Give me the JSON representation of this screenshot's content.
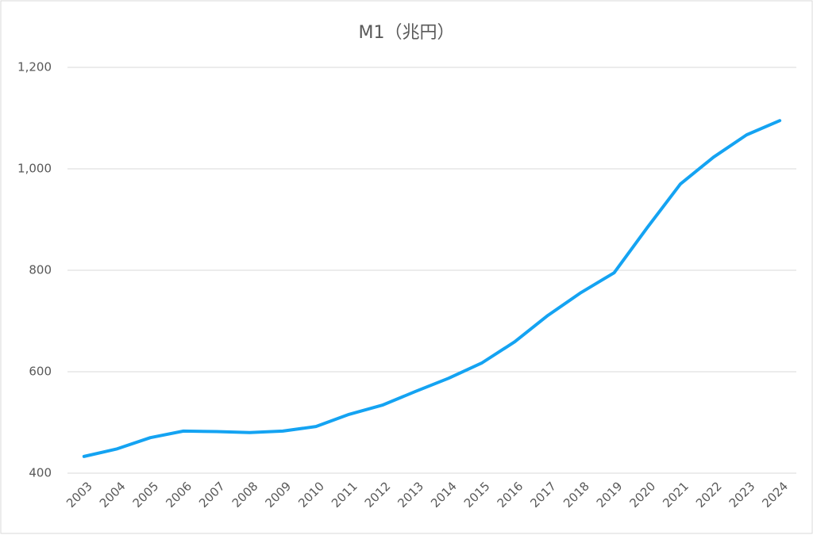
{
  "chart_data": {
    "type": "line",
    "title": "M1（兆円）",
    "categories": [
      "2003",
      "2004",
      "2005",
      "2006",
      "2007",
      "2008",
      "2009",
      "2010",
      "2011",
      "2012",
      "2013",
      "2014",
      "2015",
      "2016",
      "2017",
      "2018",
      "2019",
      "2020",
      "2021",
      "2022",
      "2023",
      "2024"
    ],
    "series": [
      {
        "name": "M1",
        "color": "#14a3f2",
        "values": [
          433,
          448,
          470,
          483,
          482,
          480,
          483,
          492,
          516,
          534,
          561,
          587,
          617,
          659,
          711,
          756,
          795,
          884,
          970,
          1023,
          1067,
          1095
        ]
      }
    ],
    "ylim": [
      400,
      1200
    ],
    "yticks": [
      400,
      600,
      800,
      {
        "value": 1000,
        "label": "1,000"
      },
      {
        "value": 1200,
        "label": "1,200"
      }
    ],
    "grid": true,
    "legend": false
  }
}
